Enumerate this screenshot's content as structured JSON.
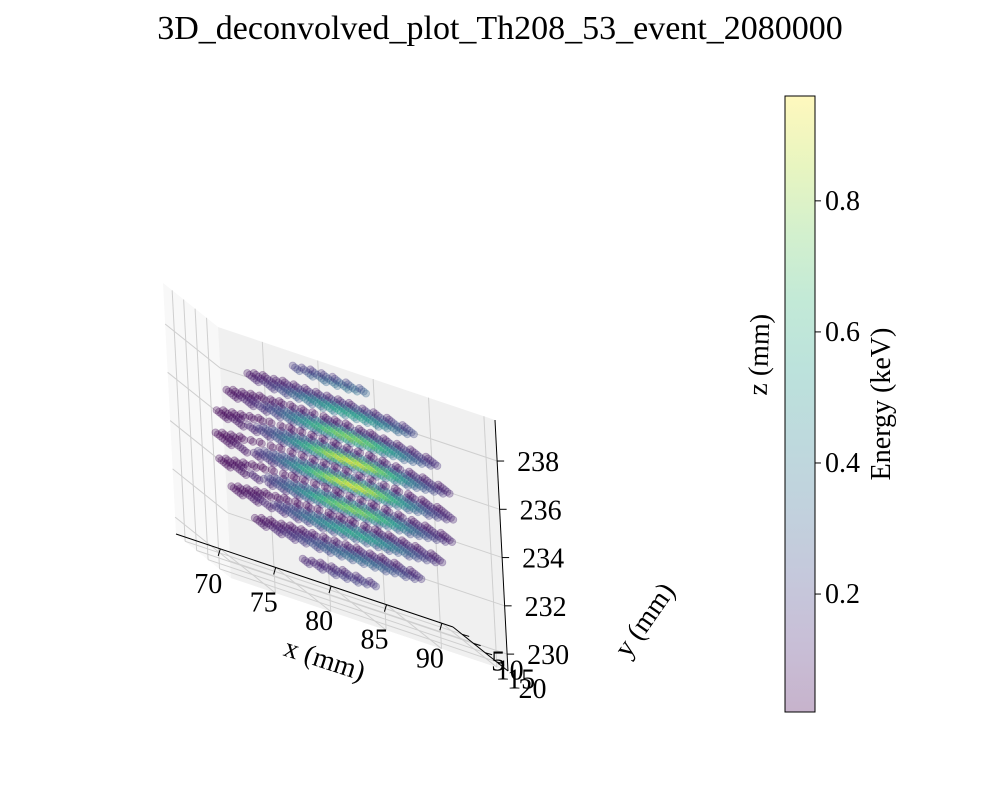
{
  "chart_data": {
    "type": "scatter",
    "projection": "3d",
    "title": "3D_deconvolved_plot_Th208_53_event_2080000",
    "xlabel": "x (mm)",
    "ylabel": "y (mm)",
    "zlabel": "z (mm)",
    "x_ticks": [
      "70",
      "75",
      "80",
      "85",
      "90"
    ],
    "y_ticks": [
      "5",
      "10",
      "15",
      "20"
    ],
    "z_ticks": [
      "230",
      "232",
      "234",
      "236",
      "238"
    ],
    "xlim": [
      66,
      91
    ],
    "ylim": [
      1,
      25
    ],
    "zlim": [
      229.3,
      239.7
    ],
    "point_alpha": 0.3,
    "colormap": "viridis",
    "colorbar": {
      "label": "Energy (keV)",
      "ticks": [
        "0.2",
        "0.4",
        "0.6",
        "0.8"
      ],
      "range": [
        0.02,
        0.96
      ]
    },
    "cluster": {
      "x_range": [
        68.5,
        88.5
      ],
      "y_range": [
        3,
        22
      ],
      "z_range": [
        230.5,
        238.5
      ],
      "grid_step_mm": 1.0,
      "peak_energy_keV": 0.96,
      "peak_center": [
        79.5,
        15,
        235
      ]
    },
    "grid": true
  }
}
